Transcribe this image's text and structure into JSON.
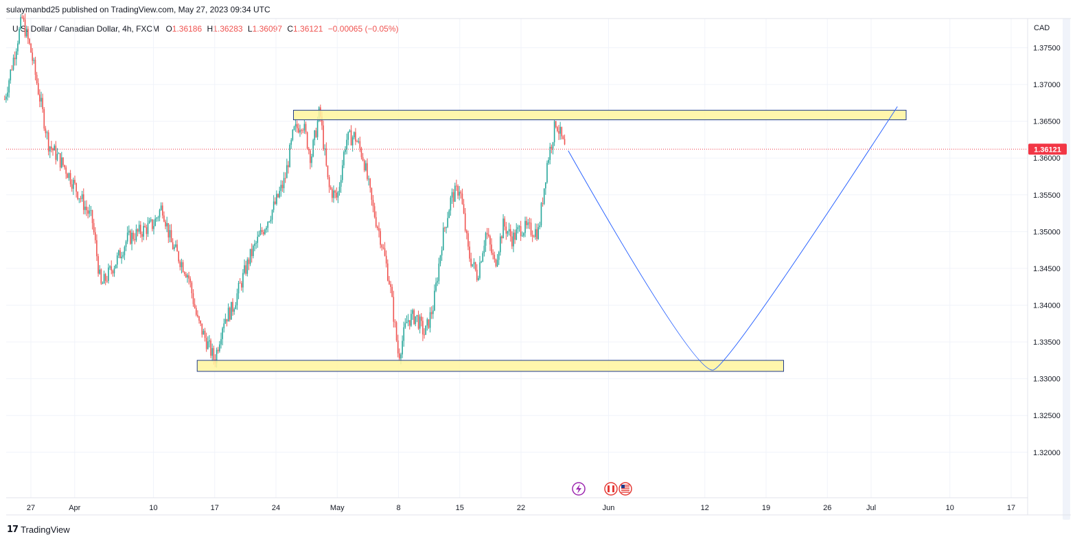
{
  "header": {
    "publish_text": "sulaymanbd25 published on TradingView.com, May 27, 2023 09:34 UTC"
  },
  "legend": {
    "symbol_text": "U.S. Dollar / Canadian Dollar, 4h, FXCM",
    "o_label": "O",
    "o_value": "1.36186",
    "h_label": "H",
    "h_value": "1.36283",
    "l_label": "L",
    "l_value": "1.36097",
    "c_label": "C",
    "c_value": "1.36121",
    "change": "−0.00065 (−0.05%)"
  },
  "price_axis": {
    "currency": "CAD",
    "current_price": "1.36121",
    "current_color": "#f23645"
  },
  "branding": {
    "logo_text": "TradingView"
  },
  "colors": {
    "up": "#26a69a",
    "down": "#ef5350",
    "zone_fill": "#fff59d",
    "zone_stroke": "#1e3a8a",
    "projection": "#2962ff"
  },
  "events": {
    "icons": [
      "lightning-icon",
      "canada-flag-icon",
      "us-flag-icon"
    ]
  },
  "chart_data": {
    "type": "candlestick",
    "title": "",
    "xlabel": "",
    "ylabel": "",
    "y_ticks": [
      "1.37500",
      "1.37000",
      "1.36500",
      "1.36000",
      "1.35500",
      "1.35000",
      "1.34500",
      "1.34000",
      "1.33500",
      "1.33000",
      "1.32500",
      "1.32000"
    ],
    "x_ticks": [
      "27",
      "Apr",
      "10",
      "17",
      "24",
      "May",
      "8",
      "15",
      "22",
      "Jun",
      "12",
      "19",
      "26",
      "Jul",
      "10",
      "17"
    ],
    "ylim": [
      1.3155,
      1.3785
    ],
    "last_close": 1.36121,
    "price_path": [
      [
        "Mar 24",
        1.368
      ],
      [
        "Mar 26",
        1.379
      ],
      [
        "Mar 27",
        1.3745
      ],
      [
        "Mar 29",
        1.362
      ],
      [
        "Mar 31",
        1.3585
      ],
      [
        "Apr 3",
        1.3515
      ],
      [
        "Apr 4",
        1.3425
      ],
      [
        "Apr 6",
        1.3465
      ],
      [
        "Apr 7",
        1.349
      ],
      [
        "Apr 10",
        1.351
      ],
      [
        "Apr 11",
        1.3535
      ],
      [
        "Apr 12",
        1.3485
      ],
      [
        "Apr 14",
        1.344
      ],
      [
        "Apr 15",
        1.338
      ],
      [
        "Apr 17",
        1.3325
      ],
      [
        "Apr 18",
        1.338
      ],
      [
        "Apr 19",
        1.3395
      ],
      [
        "Apr 21",
        1.3465
      ],
      [
        "Apr 24",
        1.354
      ],
      [
        "Apr 25",
        1.357
      ],
      [
        "Apr 26",
        1.3635
      ],
      [
        "Apr 27",
        1.365
      ],
      [
        "Apr 28",
        1.36
      ],
      [
        "Apr 29",
        1.3665
      ],
      [
        "Apr 30",
        1.356
      ],
      [
        "May 1",
        1.3545
      ],
      [
        "May 2",
        1.3625
      ],
      [
        "May 3",
        1.363
      ],
      [
        "May 4",
        1.36
      ],
      [
        "May 5",
        1.3535
      ],
      [
        "May 6",
        1.349
      ],
      [
        "May 7",
        1.343
      ],
      [
        "May 8",
        1.333
      ],
      [
        "May 9",
        1.338
      ],
      [
        "May 10",
        1.3385
      ],
      [
        "May 11",
        1.336
      ],
      [
        "May 12",
        1.34
      ],
      [
        "May 13",
        1.349
      ],
      [
        "May 14",
        1.3545
      ],
      [
        "May 15",
        1.356
      ],
      [
        "May 16",
        1.347
      ],
      [
        "May 17",
        1.344
      ],
      [
        "May 18",
        1.35
      ],
      [
        "May 19",
        1.3455
      ],
      [
        "May 20",
        1.351
      ],
      [
        "May 21",
        1.349
      ],
      [
        "May 22",
        1.3505
      ],
      [
        "May 24",
        1.35
      ],
      [
        "May 25",
        1.3595
      ],
      [
        "May 26",
        1.365
      ],
      [
        "May 27",
        1.3612
      ]
    ],
    "zones": [
      {
        "name": "resistance",
        "from": "Apr 26",
        "to": "Jul 5",
        "low": 1.3652,
        "high": 1.3665
      },
      {
        "name": "support",
        "from": "Apr 15",
        "to": "Jun 21",
        "low": 1.331,
        "high": 1.3325
      }
    ],
    "projection": [
      [
        "May 27",
        1.361
      ],
      [
        "Jun 13",
        1.3312
      ],
      [
        "Jul 4",
        1.367
      ]
    ]
  }
}
